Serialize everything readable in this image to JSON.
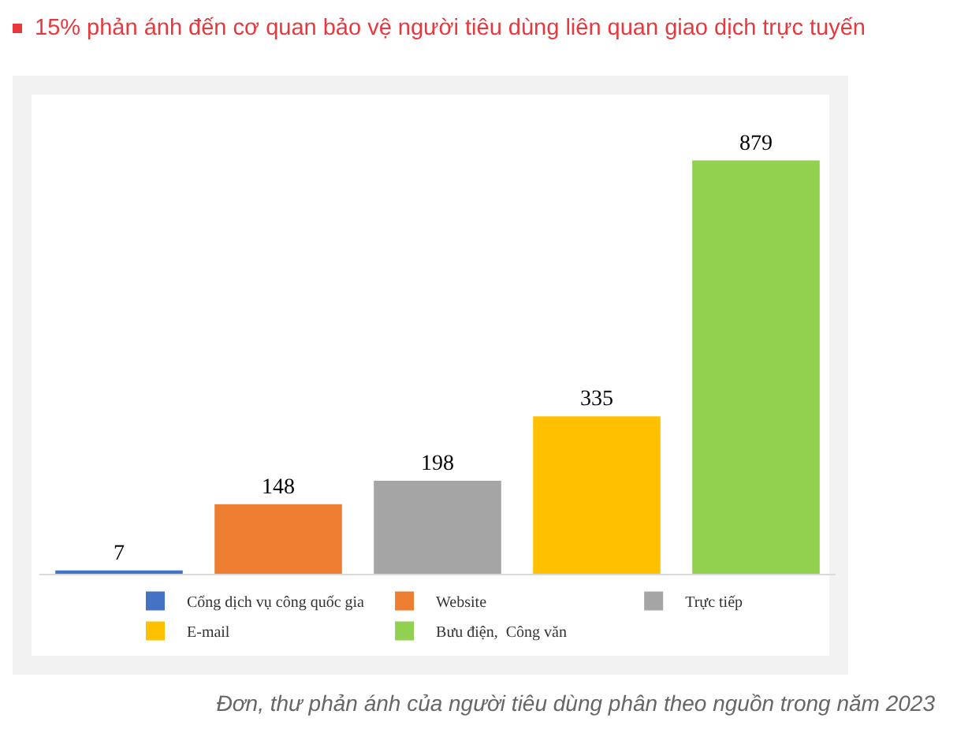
{
  "chart_data": {
    "type": "bar",
    "title": "15% phản ánh đến cơ quan bảo vệ người tiêu dùng liên quan giao dịch trực tuyến",
    "categories": [
      null,
      null,
      null,
      null,
      null
    ],
    "stacked": true,
    "series": [
      {
        "name": "Cổng dịch vụ công quốc gia",
        "color": "#4472c4",
        "values": [
          7,
          null,
          null,
          null,
          null
        ]
      },
      {
        "name": "Website",
        "color": "#ed7d31",
        "values": [
          null,
          148,
          null,
          null,
          null
        ]
      },
      {
        "name": "Trực tiếp",
        "color": "#a5a5a5",
        "values": [
          null,
          null,
          198,
          null,
          null
        ]
      },
      {
        "name": "E-mail",
        "color": "#ffc000",
        "values": [
          null,
          null,
          null,
          335,
          null
        ]
      },
      {
        "name": "Bưu điện,  Công văn",
        "color": "#92d050",
        "values": [
          null,
          null,
          null,
          null,
          879
        ]
      }
    ],
    "data_labels": true,
    "legend": "bottom",
    "tick_labels": false,
    "annotations": [
      "Đơn, thư phản ánh của người tiêu dùng phân theo nguồn trong năm 2023"
    ]
  }
}
